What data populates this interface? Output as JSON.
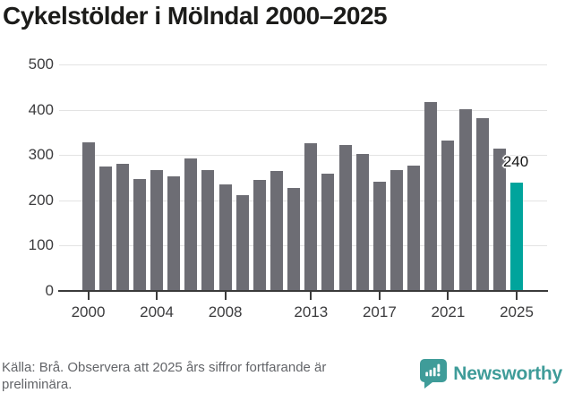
{
  "title": "Cykelstölder i Mölndal 2000–2025",
  "chart_data": {
    "type": "bar",
    "x": [
      2000,
      2001,
      2002,
      2003,
      2004,
      2005,
      2006,
      2007,
      2008,
      2009,
      2010,
      2011,
      2012,
      2013,
      2014,
      2015,
      2016,
      2017,
      2018,
      2019,
      2020,
      2021,
      2022,
      2023,
      2024,
      2025
    ],
    "values": [
      328,
      275,
      280,
      247,
      267,
      252,
      293,
      266,
      236,
      212,
      246,
      264,
      228,
      326,
      259,
      323,
      302,
      242,
      267,
      277,
      417,
      332,
      401,
      381,
      314,
      240
    ],
    "title": "Cykelstölder i Mölndal 2000–2025",
    "xlabel": "",
    "ylabel": "",
    "ylim": [
      0,
      500
    ],
    "y_ticks": [
      0,
      100,
      200,
      300,
      400,
      500
    ],
    "x_tick_labels": [
      "2000",
      "2004",
      "2008",
      "2013",
      "2017",
      "2021",
      "2025"
    ],
    "grid": "horizontal",
    "legend": "none",
    "highlight_year": 2025,
    "highlight_value_label": "240"
  },
  "colors": {
    "bar": "#6d6d74",
    "highlight_bar": "#00a49c",
    "brand_teal": "#3f9c99",
    "grid_line": "#e3e3e3",
    "axis_line": "#3a3a3a",
    "axis_text": "#3c3c3e",
    "title_text": "#1c1c1a",
    "muted_text": "#636569"
  },
  "footer": {
    "source_text": "Källa: Brå. Observera att 2025 års siffror fortfarande är preliminära.",
    "brand": "Newsworthy"
  }
}
